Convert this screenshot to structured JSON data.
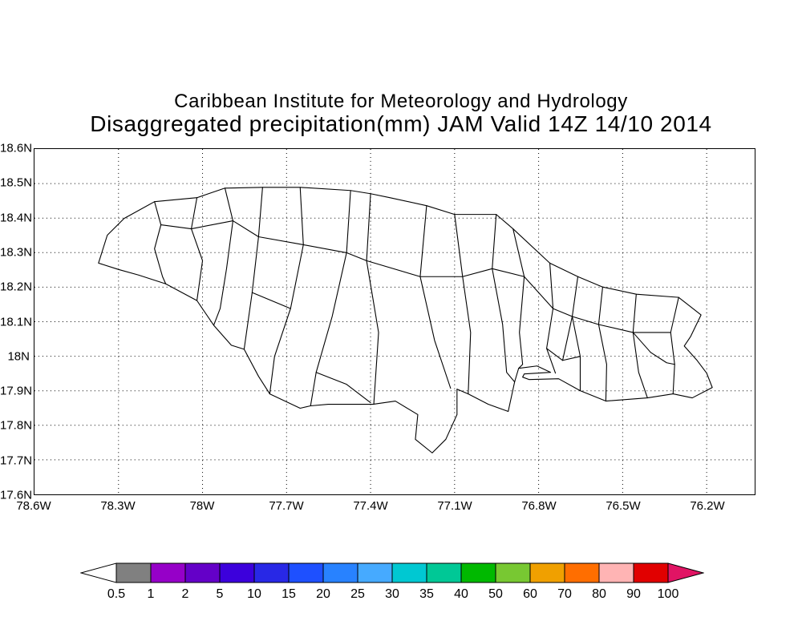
{
  "title": {
    "line1": "Caribbean Institute for Meteorology and Hydrology",
    "line2": "Disaggregated precipitation(mm) JAM Valid 14Z 14/10 2014"
  },
  "axes": {
    "lat_ticks": [
      "18.6N",
      "18.5N",
      "18.4N",
      "18.3N",
      "18.2N",
      "18.1N",
      "18N",
      "17.9N",
      "17.8N",
      "17.7N",
      "17.6N"
    ],
    "lon_ticks": [
      "78.6W",
      "78.3W",
      "78W",
      "77.7W",
      "77.4W",
      "77.1W",
      "76.8W",
      "76.5W",
      "76.2W"
    ]
  },
  "colorbar": {
    "labels": [
      "0.5",
      "1",
      "2",
      "5",
      "10",
      "15",
      "20",
      "25",
      "30",
      "35",
      "40",
      "50",
      "60",
      "70",
      "80",
      "90",
      "100"
    ],
    "segment_colors": [
      "#808080",
      "#9600c8",
      "#6400c8",
      "#3c00dc",
      "#2828e6",
      "#1e50ff",
      "#2882ff",
      "#46aaff",
      "#00c8d2",
      "#00c896",
      "#00b900",
      "#78c832",
      "#f0a000",
      "#ff6e00",
      "#ffb4b4",
      "#e10000"
    ],
    "left_arrow_color": "#ffffff",
    "right_arrow_color": "#e11464",
    "outline_color": "#000000"
  },
  "colors": {
    "background": "#ffffff",
    "map_line": "#000000",
    "text": "#000000"
  }
}
